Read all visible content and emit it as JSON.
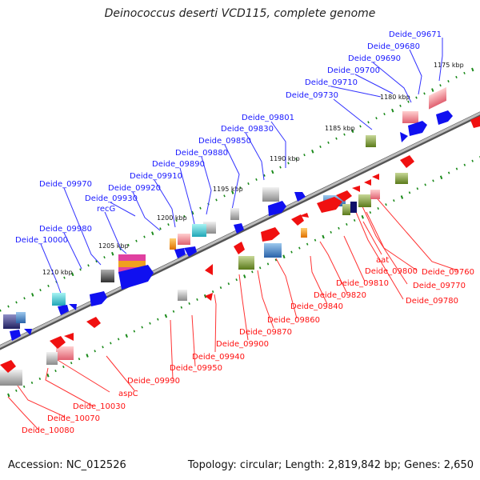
{
  "title": "Deinococcus deserti VCD115, complete genome",
  "accession": "Accession: NC_012526",
  "summary": "Topology: circular; Length: 2,819,842 bp; Genes: 2,650",
  "colors": {
    "top_label": "#1a1aff",
    "bottom_label": "#ff1010",
    "backbone": "#8a8a8a",
    "tick": "#1a8a1a",
    "forward_arrow": "#1010f0",
    "reverse_arrow": "#f01010"
  },
  "ticks": [
    "1175 kbp",
    "1180 kbp",
    "1185 kbp",
    "1190 kbp",
    "1195 kbp",
    "1200 kbp",
    "1205 kbp",
    "1210 kbp"
  ],
  "top_labels": [
    "Deide_09671",
    "Deide_09680",
    "Deide_09690",
    "Deide_09700",
    "Deide_09710",
    "Deide_09730",
    "Deide_09801",
    "Deide_09830",
    "Deide_09850",
    "Deide_09880",
    "Deide_09890",
    "Deide_09910",
    "Deide_09920",
    "Deide_09930",
    "Deide_09970",
    "recG",
    "Deide_09980",
    "Deide_10000"
  ],
  "bottom_labels": [
    "Deide_09760",
    "aat",
    "Deide_09800",
    "Deide_09770",
    "Deide_09810",
    "Deide_09780",
    "Deide_09820",
    "Deide_09840",
    "Deide_09860",
    "Deide_09870",
    "Deide_09900",
    "Deide_09940",
    "Deide_09950",
    "Deide_09990",
    "aspC",
    "Deide_10030",
    "Deide_10070",
    "Deide_10080"
  ]
}
